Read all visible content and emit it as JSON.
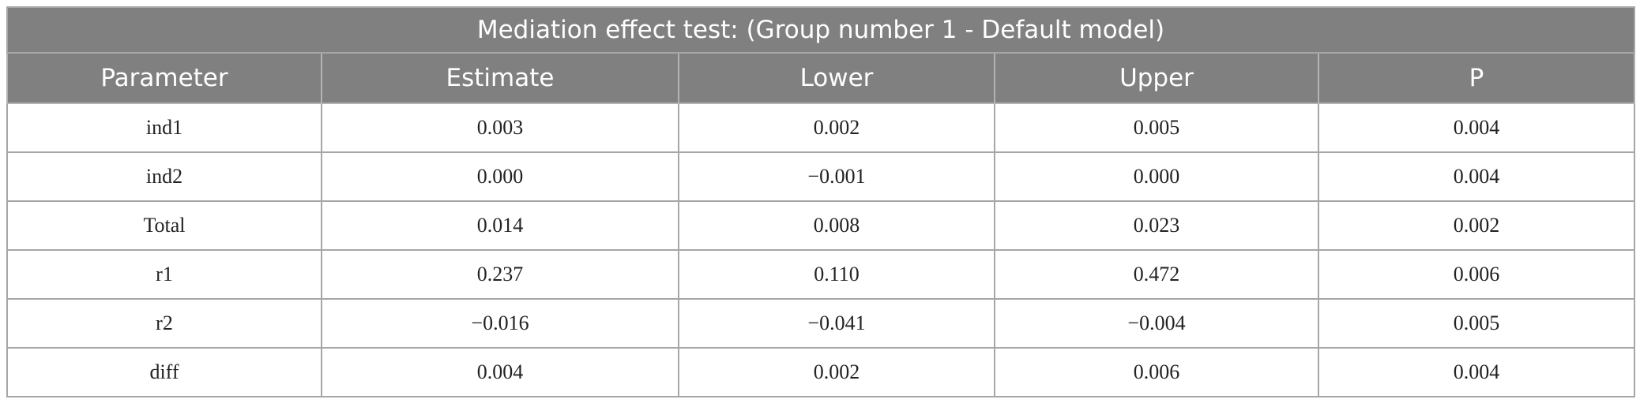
{
  "table": {
    "title": "Mediation effect test: (Group number 1 - Default model)",
    "header": [
      "Parameter",
      "Estimate",
      "Lower",
      "Upper",
      "P"
    ],
    "rows": [
      [
        "ind1",
        "0.003",
        "0.002",
        "0.005",
        "0.004"
      ],
      [
        "ind2",
        "0.000",
        "−0.001",
        "0.000",
        "0.004"
      ],
      [
        "Total",
        "0.014",
        "0.008",
        "0.023",
        "0.002"
      ],
      [
        "r1",
        "0.237",
        "0.110",
        "0.472",
        "0.006"
      ],
      [
        "r2",
        "−0.016",
        "−0.041",
        "−0.004",
        "0.005"
      ],
      [
        "diff",
        "0.004",
        "0.002",
        "0.006",
        "0.004"
      ]
    ]
  }
}
